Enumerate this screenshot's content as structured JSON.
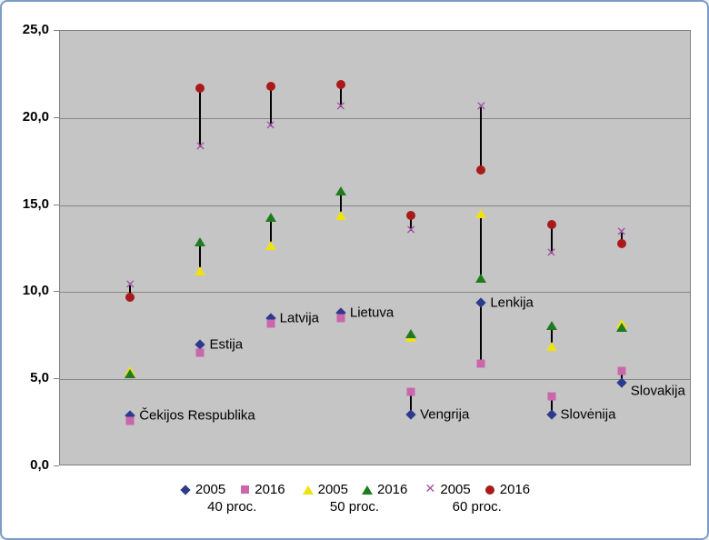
{
  "chart_data": {
    "type": "scatter",
    "title": "",
    "xlabel": "",
    "ylabel": "",
    "ylim": [
      0,
      25
    ],
    "grid": true,
    "legend_position": "bottom",
    "plot_bg": "#c5c5c5",
    "connector_color": "#000000",
    "y_ticks": [
      "25,0",
      "20,0",
      "15,0",
      "10,0",
      "5,0",
      "0,0"
    ],
    "categories": [
      "Čekijos Respublika",
      "Estija",
      "Latvija",
      "Lietuva",
      "Vengrija",
      "Lenkija",
      "Slovėnija",
      "Slovakija"
    ],
    "series": [
      {
        "name": "2005",
        "group": "40 proc.",
        "marker": "diamond",
        "color": "#2e3a8c",
        "values": [
          2.9,
          7.0,
          8.5,
          8.8,
          3.0,
          9.4,
          3.0,
          4.8
        ]
      },
      {
        "name": "2016",
        "group": "40 proc.",
        "marker": "square",
        "color": "#ca67ac",
        "values": [
          2.6,
          6.5,
          8.2,
          8.5,
          4.3,
          5.9,
          4.0,
          5.5
        ]
      },
      {
        "name": "2005",
        "group": "50 proc.",
        "marker": "triangle-up",
        "color": "#efe213",
        "values": [
          5.5,
          11.2,
          12.7,
          14.4,
          7.4,
          14.5,
          6.9,
          8.2
        ]
      },
      {
        "name": "2016",
        "group": "50 proc.",
        "marker": "triangle-up",
        "color": "#1e7b1e",
        "values": [
          5.3,
          12.9,
          14.3,
          15.8,
          7.6,
          10.8,
          8.1,
          8.0
        ]
      },
      {
        "name": "2005",
        "group": "60 proc.",
        "marker": "x",
        "color": "#a352a3",
        "values": [
          10.4,
          18.3,
          19.5,
          20.6,
          13.5,
          20.6,
          12.2,
          13.4
        ]
      },
      {
        "name": "2016",
        "group": "60 proc.",
        "marker": "circle",
        "color": "#ab1a1a",
        "values": [
          9.7,
          21.7,
          21.8,
          21.9,
          14.4,
          17.0,
          13.9,
          12.8
        ]
      }
    ],
    "pairs": [
      [
        0,
        1
      ],
      [
        2,
        3
      ],
      [
        4,
        5
      ]
    ],
    "legend_groups": [
      "40 proc.",
      "50 proc.",
      "60 proc."
    ],
    "point_labels_series": 0
  }
}
